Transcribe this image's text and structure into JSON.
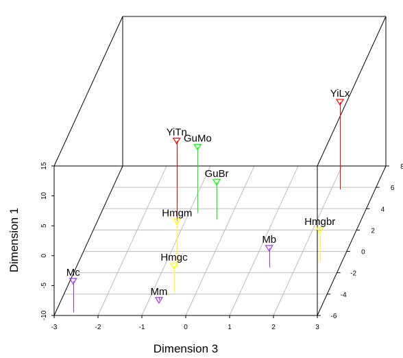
{
  "chart_data": {
    "type": "scatter3d",
    "xlabel": "Dimension 3",
    "ylabel": "Dimension 1",
    "zlabel": "",
    "xlim": [
      -3,
      3
    ],
    "ylim": [
      -10,
      15
    ],
    "zlim": [
      -6,
      8
    ],
    "x_ticks": [
      -3,
      -2,
      -1,
      0,
      1,
      2,
      3
    ],
    "y_ticks": [
      -10,
      -5,
      0,
      5,
      10,
      15
    ],
    "z_ticks": [
      -6,
      -4,
      -2,
      0,
      2,
      4,
      6,
      8
    ],
    "z_tick_labels": [
      "-6",
      "-4",
      "-2",
      "0",
      "2",
      "4",
      "6",
      "8"
    ],
    "grid": true,
    "points": [
      {
        "label": "Mc",
        "x": -2.6,
        "z": -5.7,
        "y": -4.8,
        "color": "#9b30ff"
      },
      {
        "label": "Hmgm",
        "x": -0.7,
        "z": -1.5,
        "y": -2.4,
        "color": "#ffff00"
      },
      {
        "label": "Mm",
        "x": -0.8,
        "z": -4.3,
        "y": -10.5,
        "color": "#9b30ff"
      },
      {
        "label": "Hmgc",
        "x": -0.5,
        "z": -3.9,
        "y": -5.5,
        "color": "#ffff00"
      },
      {
        "label": "YiTn",
        "x": -1.2,
        "z": 2.9,
        "y": 3.3,
        "color": "#ff0000"
      },
      {
        "label": "GuMo",
        "x": -0.8,
        "z": 3.6,
        "y": 1.0,
        "color": "#00ff00"
      },
      {
        "label": "GuBr",
        "x": -0.3,
        "z": 3.0,
        "y": -3.8,
        "color": "#00ff00"
      },
      {
        "label": "Mb",
        "x": 1.4,
        "z": -1.5,
        "y": -6.8,
        "color": "#9b30ff"
      },
      {
        "label": "Hmgbr",
        "x": 2.5,
        "z": -1.0,
        "y": -4.7,
        "color": "#ffff00"
      },
      {
        "label": "YiLx",
        "x": 2.2,
        "z": 5.8,
        "y": 4.6,
        "color": "#ff0000"
      }
    ]
  }
}
